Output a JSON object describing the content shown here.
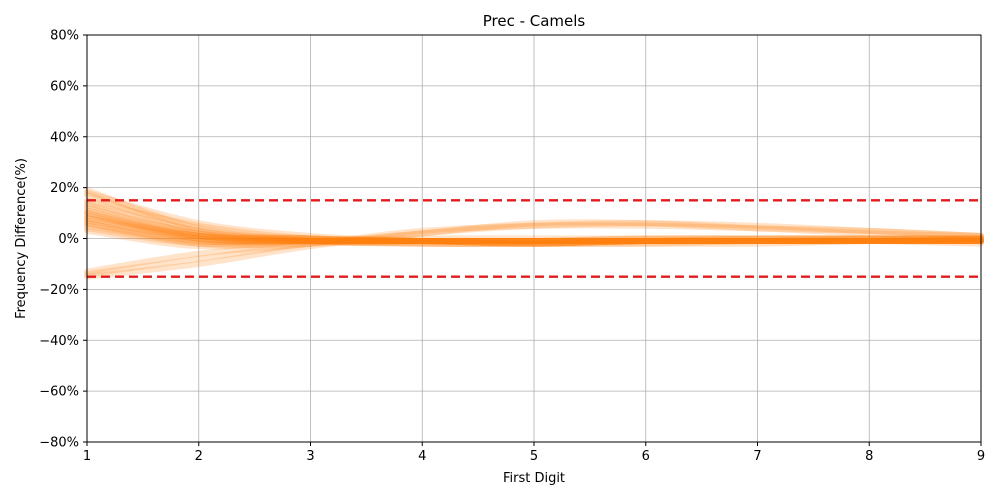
{
  "chart_data": {
    "type": "line",
    "title": "Prec - Camels",
    "xlabel": "First Digit",
    "ylabel": "Frequency Difference(%)",
    "xlim": [
      1,
      9
    ],
    "ylim": [
      -80,
      80
    ],
    "x_ticks": [
      1,
      2,
      3,
      4,
      5,
      6,
      7,
      8,
      9
    ],
    "y_ticks": [
      -80,
      -60,
      -40,
      -20,
      0,
      20,
      40,
      60,
      80
    ],
    "y_tick_labels": [
      "−80%",
      "−60%",
      "−40%",
      "−20%",
      "0%",
      "20%",
      "40%",
      "60%",
      "80%"
    ],
    "grid": true,
    "x": [
      1,
      2,
      3,
      4,
      5,
      6,
      7,
      8,
      9
    ],
    "series_color": "#ff7f0e",
    "threshold_color": "#e31a1c",
    "thresholds": [
      15,
      -15
    ],
    "series": [
      {
        "values": [
          19,
          4,
          -1,
          -2,
          -2,
          -1,
          -1,
          -1,
          -1
        ]
      },
      {
        "values": [
          17,
          3,
          -1,
          -2,
          -2,
          -1,
          -1,
          -1,
          -1
        ]
      },
      {
        "values": [
          15,
          5,
          0,
          -1,
          -2,
          -2,
          -1,
          -1,
          -1
        ]
      },
      {
        "values": [
          14,
          3,
          0,
          -1,
          -1,
          -1,
          -1,
          -1,
          0
        ]
      },
      {
        "values": [
          13,
          2,
          -1,
          -2,
          -2,
          -1,
          -1,
          -1,
          -1
        ]
      },
      {
        "values": [
          12,
          2,
          0,
          -1,
          -1,
          -1,
          -1,
          -1,
          -1
        ]
      },
      {
        "values": [
          11,
          1,
          -1,
          -1,
          -2,
          -1,
          -1,
          -1,
          -1
        ]
      },
      {
        "values": [
          10,
          1,
          -1,
          -1,
          -1,
          -1,
          -1,
          0,
          0
        ]
      },
      {
        "values": [
          9,
          1,
          0,
          -1,
          -1,
          -1,
          -1,
          -1,
          -1
        ]
      },
      {
        "values": [
          8,
          0,
          -1,
          -1,
          -1,
          -1,
          -1,
          -1,
          -1
        ]
      },
      {
        "values": [
          7,
          0,
          -1,
          -1,
          -1,
          -1,
          0,
          0,
          0
        ]
      },
      {
        "values": [
          6,
          -1,
          -1,
          -1,
          -1,
          -1,
          -1,
          -1,
          -1
        ]
      },
      {
        "values": [
          5,
          -1,
          -1,
          -1,
          -1,
          0,
          0,
          0,
          0
        ]
      },
      {
        "values": [
          4,
          -2,
          -1,
          -1,
          -1,
          -1,
          -1,
          -1,
          -1
        ]
      },
      {
        "values": [
          3,
          -3,
          -1,
          0,
          0,
          0,
          0,
          0,
          0
        ]
      },
      {
        "values": [
          10,
          0,
          -1,
          -1,
          -1,
          0,
          0,
          0,
          -1
        ]
      },
      {
        "values": [
          8,
          1,
          0,
          -1,
          -2,
          -1,
          -1,
          -1,
          -2
        ]
      },
      {
        "values": [
          6,
          -2,
          -2,
          -1,
          -1,
          -1,
          -1,
          -1,
          0
        ]
      },
      {
        "values": [
          -13,
          -6,
          -2,
          3,
          5,
          5,
          4,
          3,
          1
        ]
      },
      {
        "values": [
          -14,
          -8,
          -2,
          2,
          6,
          6,
          4,
          2,
          1
        ]
      },
      {
        "values": [
          -15,
          -10,
          -3,
          2,
          5,
          6,
          5,
          3,
          1
        ]
      },
      {
        "values": [
          18,
          6,
          1,
          -1,
          -2,
          -2,
          -2,
          -1,
          -1
        ]
      }
    ]
  }
}
